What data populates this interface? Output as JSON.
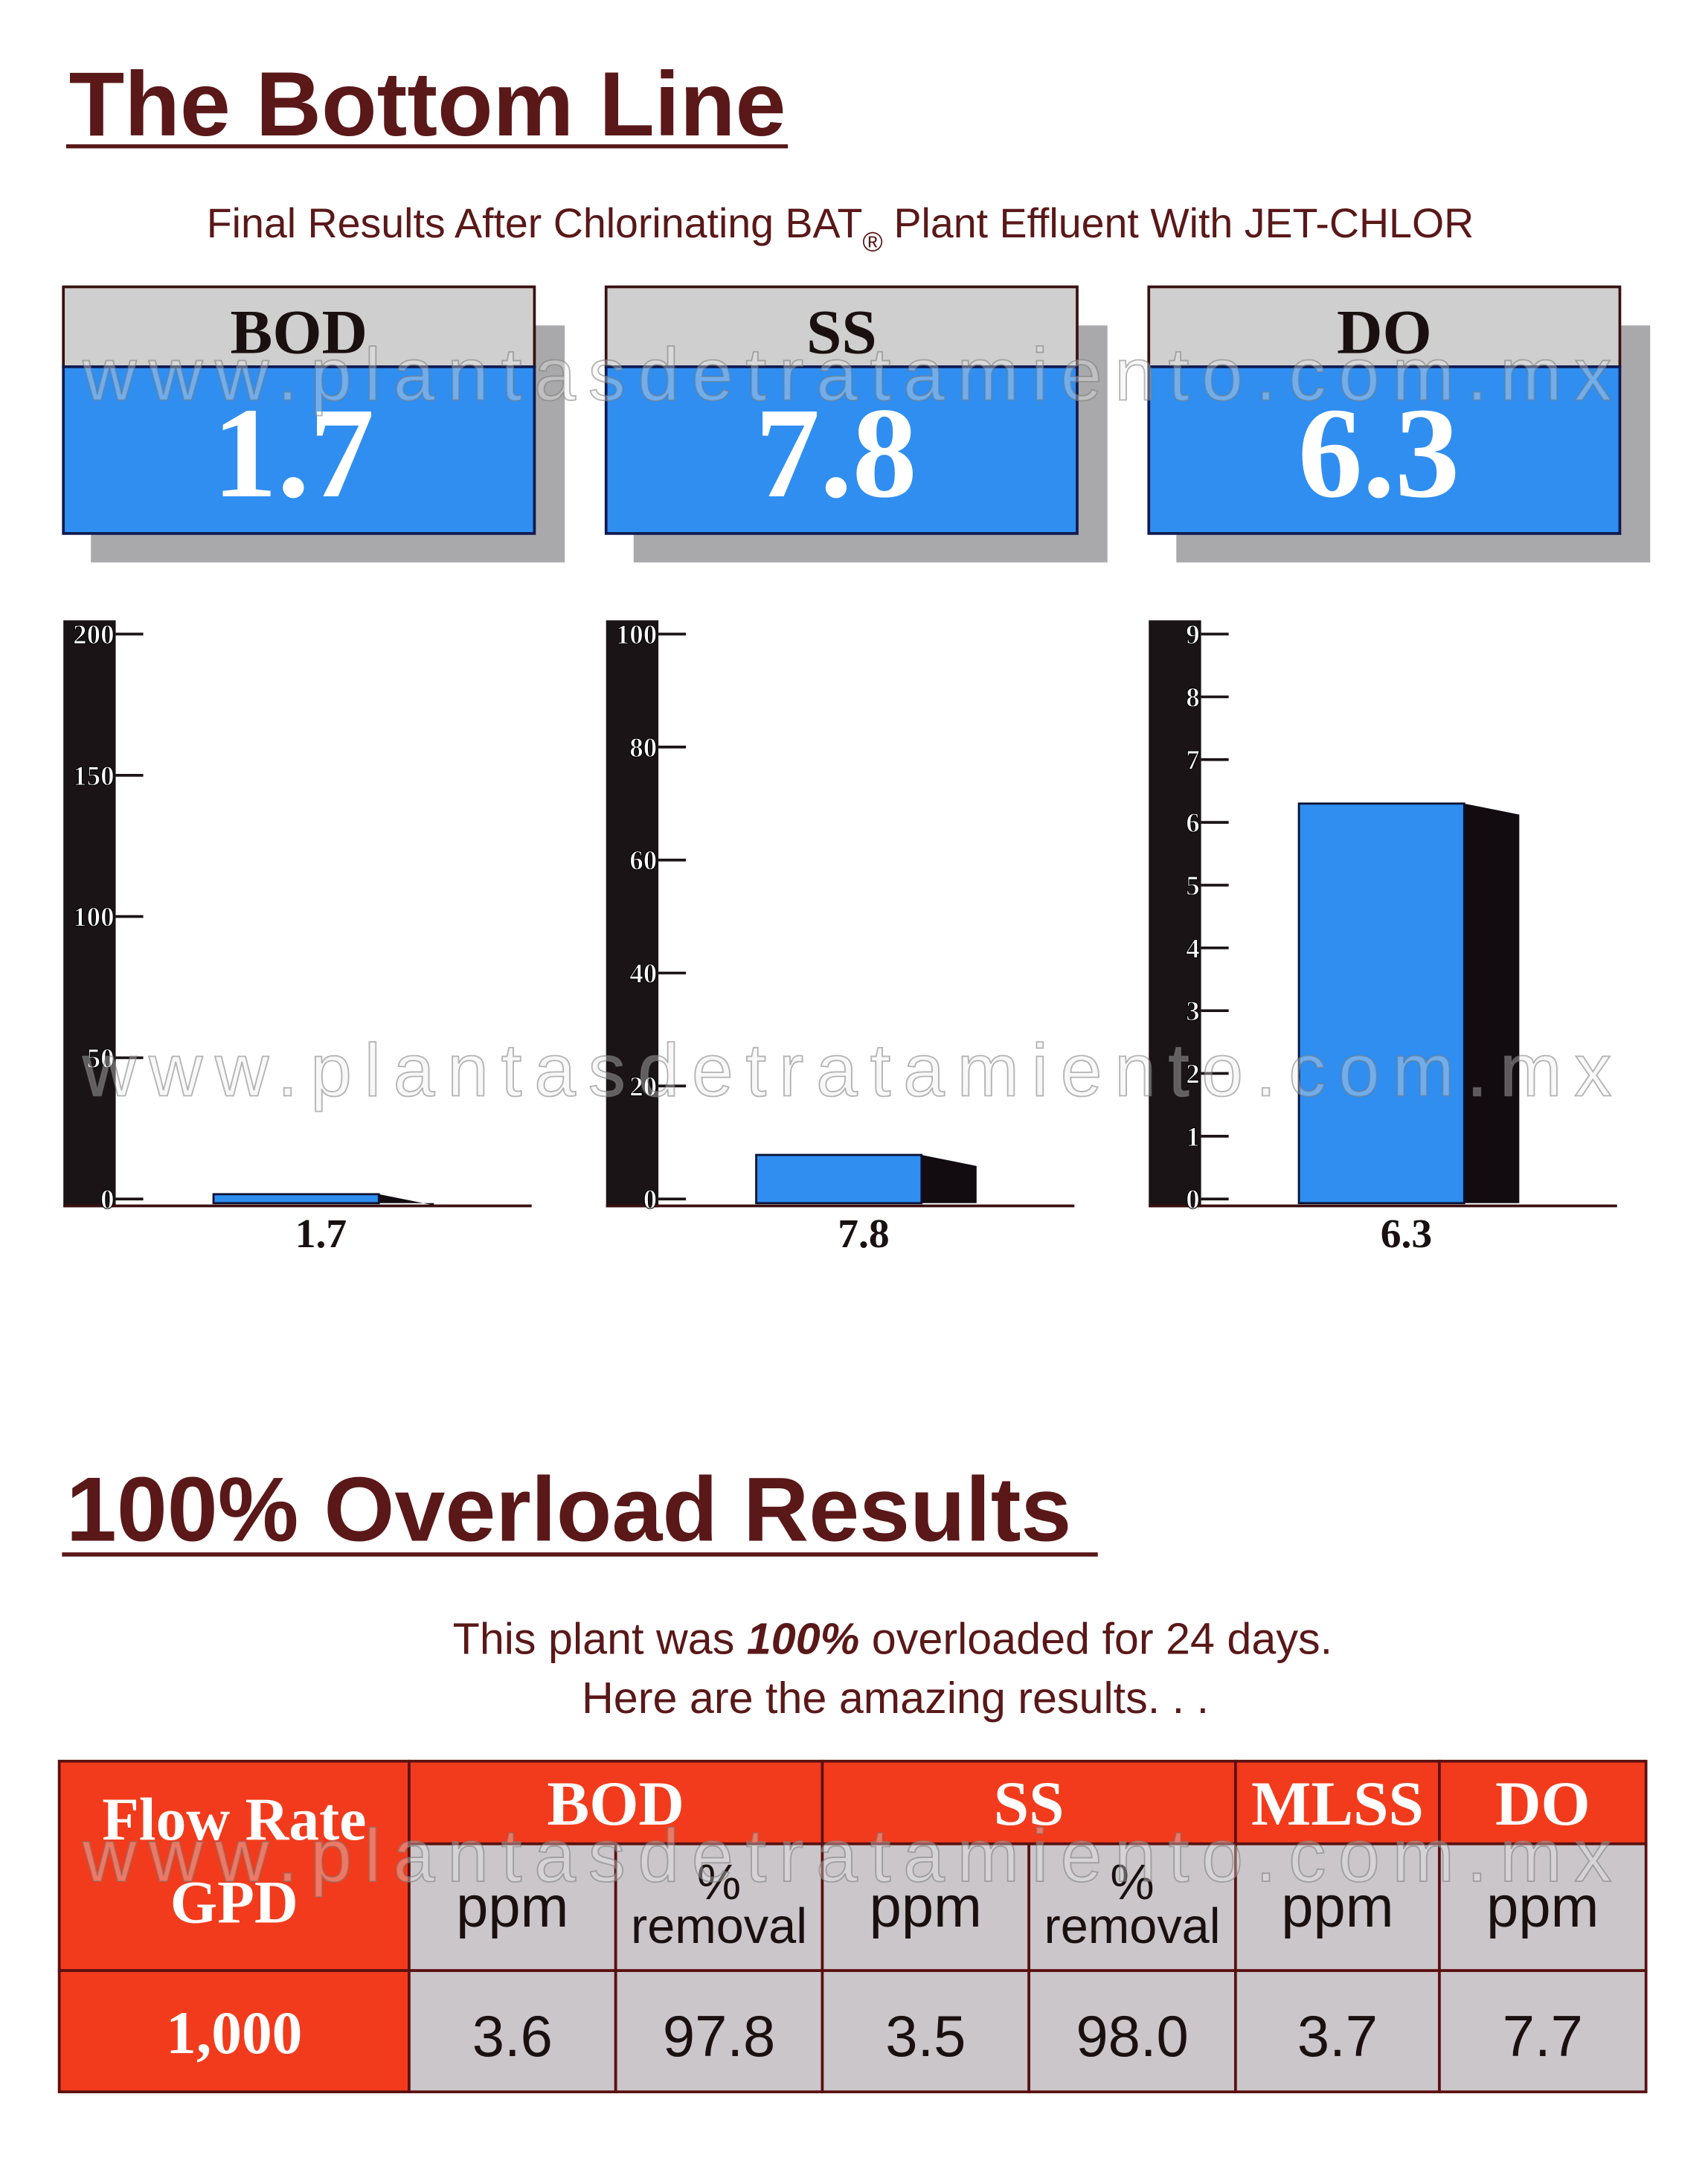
{
  "header": {
    "title": "The Bottom Line",
    "subtitle": {
      "before": "Final Results After Chlorinating BAT",
      "mark": "®",
      "after": "Plant Effluent With JET-CHLOR"
    }
  },
  "cards": [
    {
      "label": "BOD",
      "value": "1.7"
    },
    {
      "label": "SS",
      "value": "7.8"
    },
    {
      "label": "DO",
      "value": "6.3"
    }
  ],
  "chart_data": [
    {
      "type": "bar",
      "values": [
        1.7
      ],
      "color": "#2f8ef0",
      "ylim": [
        0,
        200
      ],
      "yticks": [
        0,
        50,
        100,
        150,
        200
      ]
    },
    {
      "type": "bar",
      "values": [
        7.8
      ],
      "color": "#2f8ef0",
      "ylim": [
        0,
        100
      ],
      "yticks": [
        0,
        20,
        40,
        60,
        80,
        100
      ]
    },
    {
      "type": "bar",
      "values": [
        6.3
      ],
      "color": "#2f8ef0",
      "ylim": [
        0,
        9
      ],
      "yticks": [
        0,
        1,
        2,
        3,
        4,
        5,
        6,
        7,
        8,
        9
      ]
    }
  ],
  "section": {
    "title": "100% Overload Results",
    "line1": {
      "before": "This plant was ",
      "emphasis": "100%",
      "after": " overloaded for 24 days."
    },
    "line2": "Here are the amazing results. . ."
  },
  "table": {
    "first_header": [
      "Flow Rate",
      "GPD"
    ],
    "groups": [
      "BOD",
      "SS",
      "MLSS",
      "DO"
    ],
    "subheaders": [
      [
        "ppm"
      ],
      [
        "%",
        "removal"
      ],
      [
        "ppm"
      ],
      [
        "%",
        "removal"
      ],
      [
        "ppm"
      ],
      [
        "ppm"
      ]
    ],
    "rows": [
      [
        "1,000",
        "3.6",
        "97.8",
        "3.5",
        "98.0",
        "3.7",
        "7.7"
      ]
    ]
  },
  "watermark": "www.plantasdetratamiento.com.mx"
}
